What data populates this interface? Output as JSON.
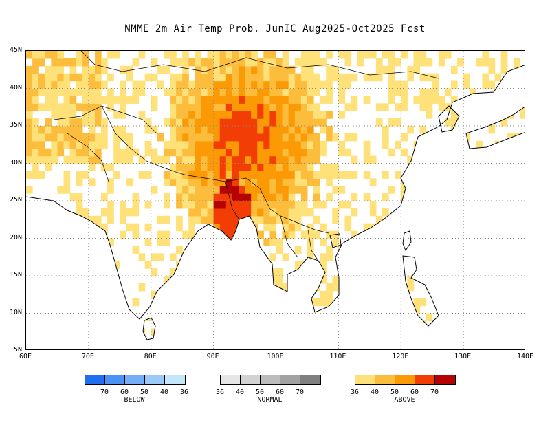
{
  "title": "NMME 2m Air Temp Prob. JunIC  Aug2025-Oct2025 Fcst",
  "map": {
    "lon_range": [
      60,
      140
    ],
    "lat_range": [
      5,
      45
    ],
    "lat_labels": [
      "45N",
      "40N",
      "35N",
      "30N",
      "25N",
      "20N",
      "15N",
      "10N",
      "5N"
    ],
    "lon_labels": [
      "60E",
      "70E",
      "80E",
      "90E",
      "100E",
      "110E",
      "120E",
      "130E",
      "140E"
    ],
    "gridlines": "dotted"
  },
  "legend": {
    "below": {
      "name": "BELOW",
      "colors": [
        "#1f6ff0",
        "#4a92f5",
        "#75adf7",
        "#9ccaf8",
        "#c4e6fa"
      ],
      "labels": [
        "70",
        "60",
        "50",
        "40",
        "36"
      ]
    },
    "normal": {
      "name": "NORMAL",
      "colors": [
        "#e6e6e6",
        "#d2d2d2",
        "#bcbcbc",
        "#a2a2a2",
        "#808080"
      ],
      "labels": [
        "36",
        "40",
        "50",
        "60",
        "70"
      ]
    },
    "above": {
      "name": "ABOVE",
      "colors": [
        "#ffe17a",
        "#fcbc3c",
        "#fb9a05",
        "#f23d05",
        "#b50303"
      ],
      "labels": [
        "36",
        "40",
        "50",
        "60",
        "70"
      ]
    }
  },
  "colors": {
    "land_outline": "#000000",
    "grid": "#8c8c8c",
    "above_36": "#ffe17a",
    "above_40": "#fcbc3c",
    "above_50": "#fb9a05",
    "above_60": "#f23d05",
    "above_70": "#b50303"
  }
}
